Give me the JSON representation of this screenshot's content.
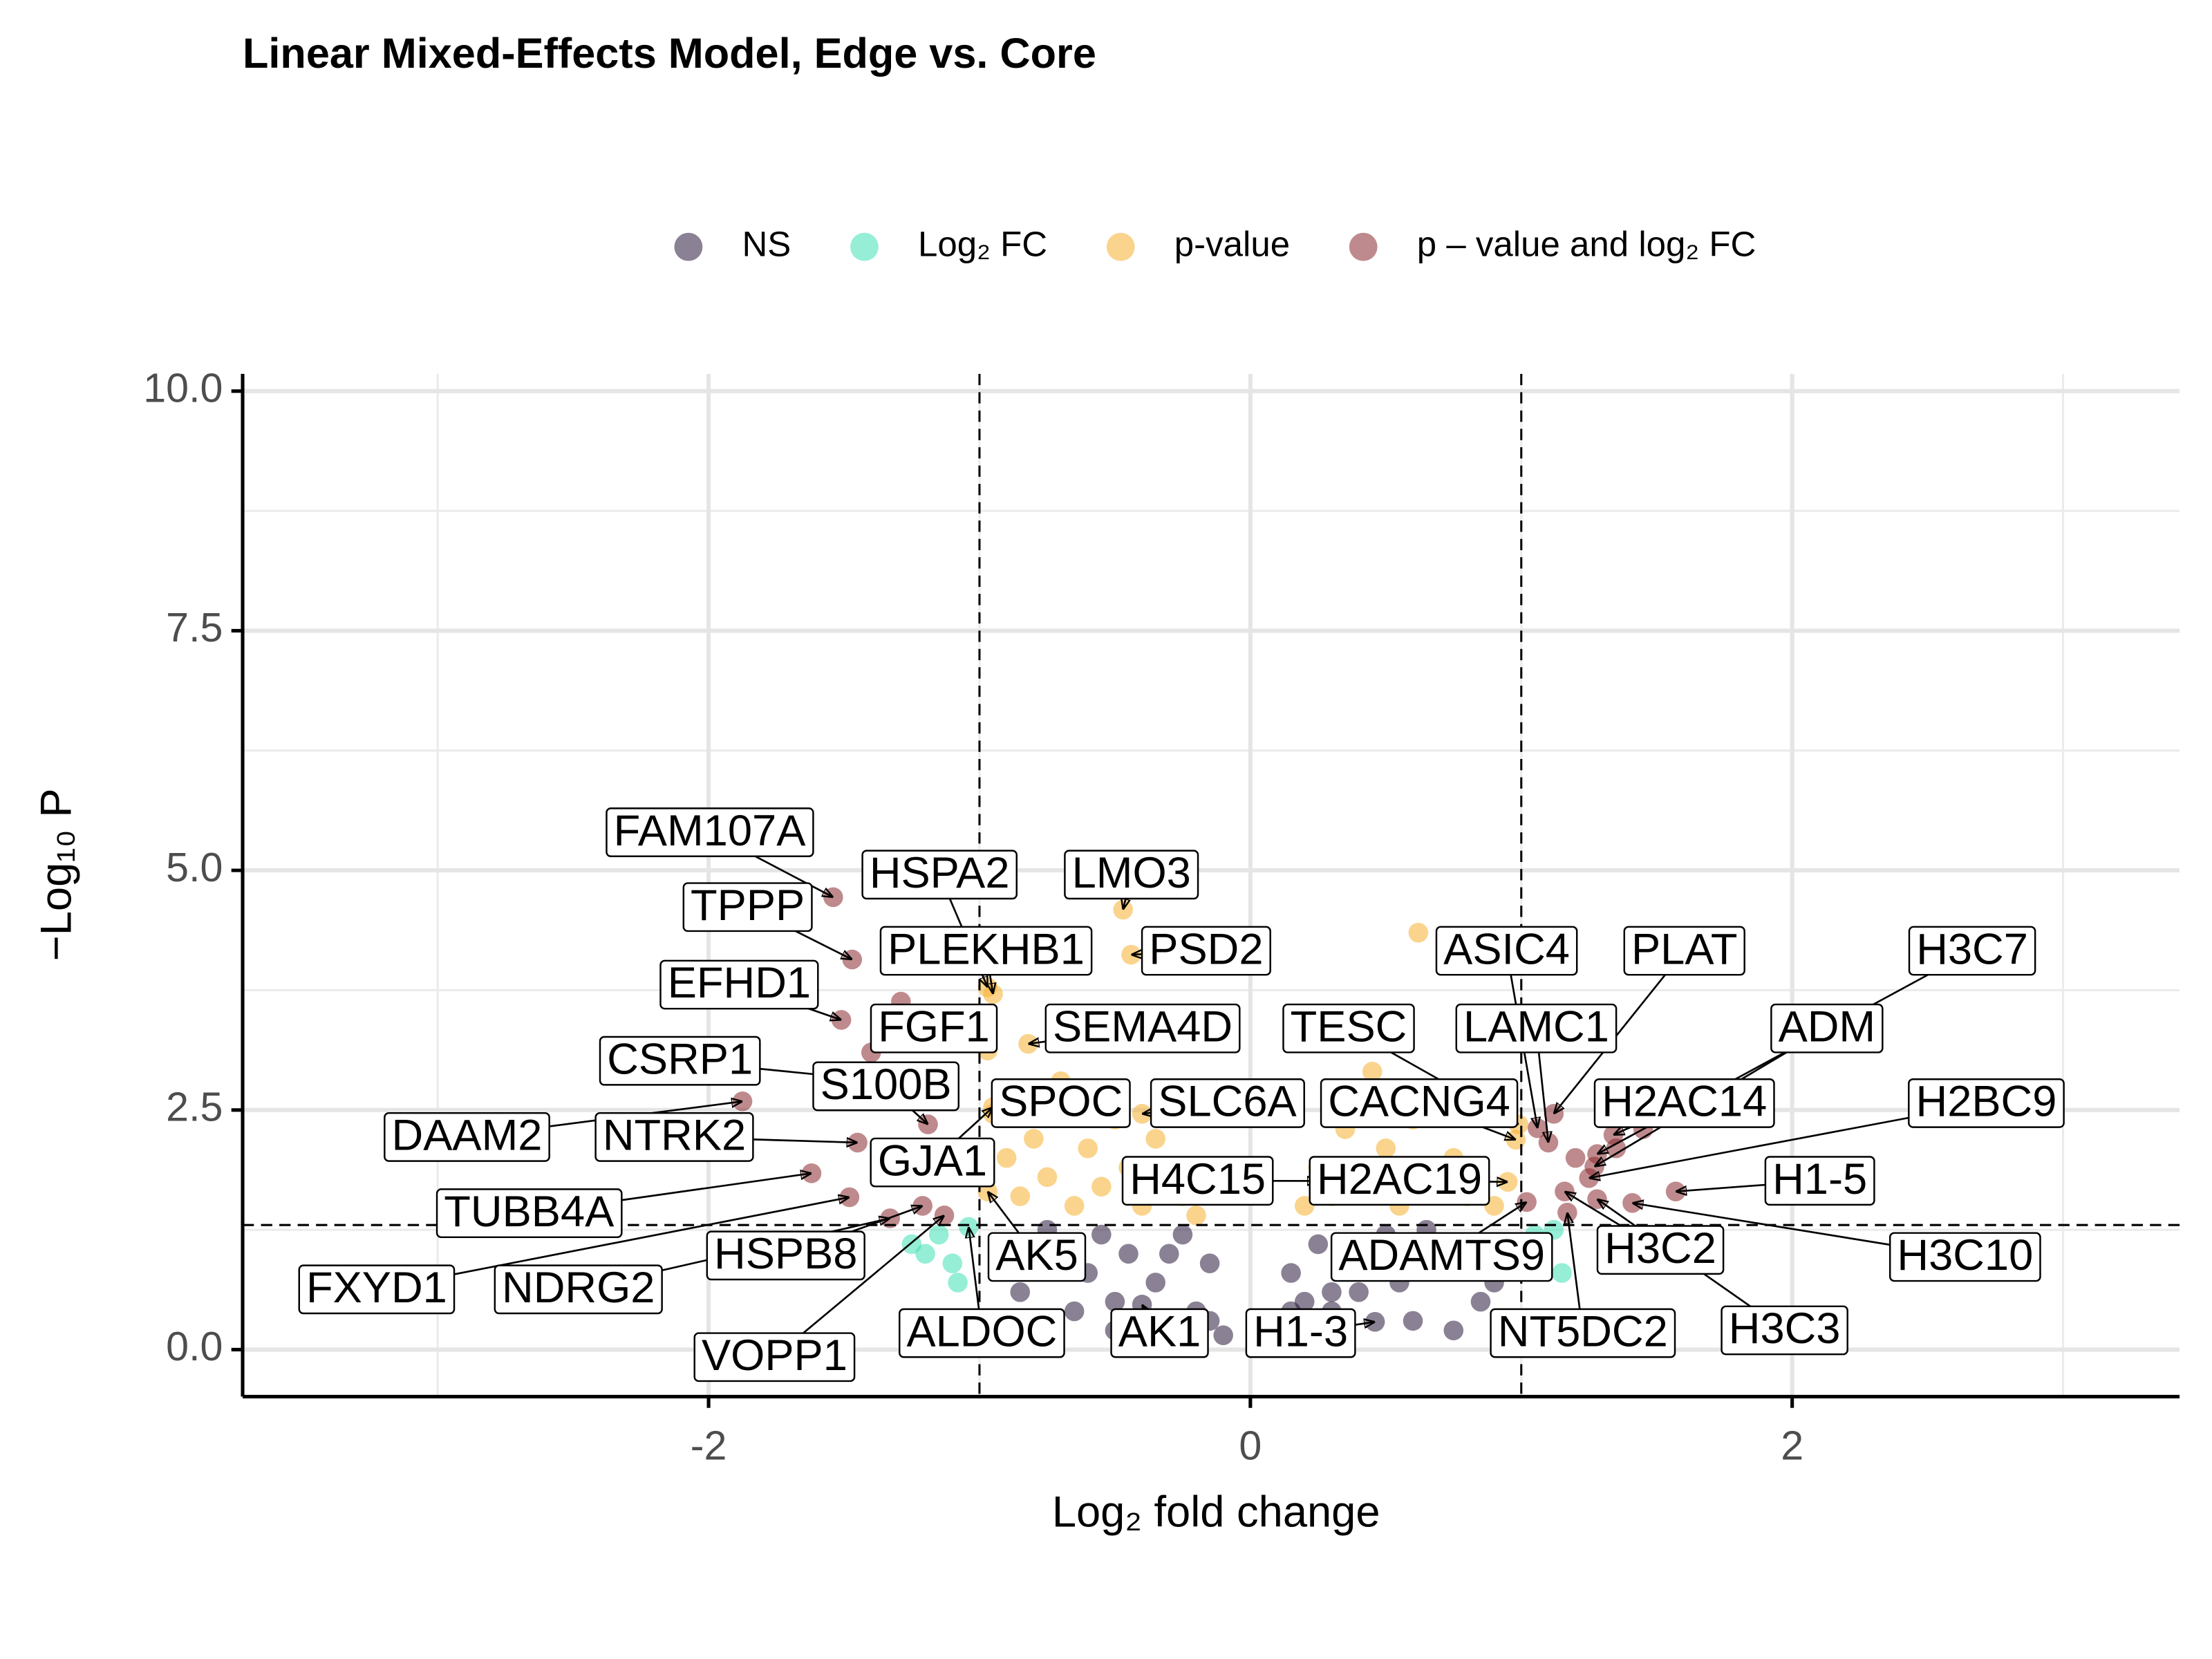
{
  "chart_data": {
    "type": "scatter",
    "title": "Linear Mixed-Effects Model, Edge vs. Core",
    "xlabel": "Log₂ fold change",
    "ylabel": "−Log₁₀ P",
    "xlim": [
      -3.72,
      3.43
    ],
    "ylim": [
      -0.49,
      10.18
    ],
    "xticks": [
      -2,
      0,
      2
    ],
    "yticks": [
      {
        "value": 0,
        "label": "0.0"
      },
      2.5,
      {
        "value": 5,
        "label": "5.0"
      },
      7.5,
      {
        "value": 10,
        "label": "10.0"
      }
    ],
    "x_minor_grid": [
      -3,
      -1,
      1,
      3
    ],
    "y_minor_grid": [
      1.25,
      3.75,
      6.25,
      8.75
    ],
    "fc_cutoffs": [
      -1,
      1
    ],
    "p_cutoff": 1.3,
    "grid": true,
    "legend": "top",
    "series": [
      {
        "name": "NS",
        "color": "#2a1a3c",
        "x": [
          -0.4,
          0.46,
          -0.85,
          -0.8,
          -0.7,
          -0.6,
          -0.55,
          -0.5,
          -0.45,
          -0.35,
          -0.3,
          -0.25,
          -0.2,
          -0.15,
          -0.1,
          0.1,
          0.15,
          0.2,
          0.25,
          0.3,
          0.35,
          0.4,
          0.5,
          0.55,
          0.6,
          0.7,
          0.8,
          0.85,
          0.9,
          -0.65,
          -0.75,
          0.65,
          0.75,
          -0.3,
          0.3,
          -0.5,
          0.5,
          -0.15,
          0.15,
          0.05
        ],
        "y": [
          0.47,
          0.29,
          0.6,
          0.9,
          1.1,
          0.8,
          1.2,
          0.5,
          1.0,
          0.7,
          0.3,
          1.2,
          0.4,
          0.9,
          0.15,
          0.1,
          0.8,
          0.5,
          1.1,
          0.4,
          0.9,
          0.6,
          1.2,
          0.7,
          0.3,
          0.9,
          1.1,
          0.5,
          0.7,
          0.4,
          1.25,
          1.25,
          0.2,
          1.0,
          0.6,
          0.2,
          1.0,
          0.3,
          0.4,
          0.05
        ],
        "labels": [
          "AK1",
          "H1-3",
          null,
          null,
          null,
          null,
          null,
          null,
          null,
          null,
          null,
          null,
          null,
          null,
          null,
          null,
          null,
          null,
          null,
          null,
          null,
          null,
          null,
          null,
          null,
          null,
          null,
          null,
          null,
          null,
          null,
          null,
          null,
          null,
          null,
          null,
          null,
          null,
          null,
          null
        ]
      },
      {
        "name": "Log₂ FC",
        "color": "#3fe0b5",
        "x": [
          -1.04,
          -1.2,
          -1.15,
          -1.08,
          -1.25,
          -1.1,
          1.05,
          1.12,
          1.08,
          1.15
        ],
        "y": [
          1.28,
          1.0,
          1.2,
          0.7,
          1.1,
          0.9,
          1.2,
          1.25,
          1.0,
          0.8
        ],
        "labels": [
          "ALDOC",
          null,
          null,
          null,
          null,
          null,
          null,
          null,
          null,
          null
        ]
      },
      {
        "name": "p-value",
        "color": "#f5b030",
        "x": [
          -0.97,
          -0.47,
          -0.95,
          -0.44,
          -0.97,
          -0.82,
          -0.95,
          -0.4,
          -0.95,
          -0.97,
          0.99,
          0.98,
          0.95,
          0.25,
          -0.9,
          -0.85,
          -0.8,
          -0.75,
          -0.7,
          -0.65,
          -0.6,
          -0.55,
          -0.5,
          -0.45,
          -0.4,
          -0.35,
          -0.3,
          -0.25,
          -0.2,
          0.2,
          0.25,
          0.3,
          0.35,
          0.4,
          0.45,
          0.5,
          0.55,
          0.6,
          0.7,
          0.75,
          0.8,
          0.9,
          0.62,
          -0.65
        ],
        "y": [
          3.78,
          4.59,
          3.71,
          4.12,
          3.12,
          3.19,
          2.46,
          2.46,
          2.53,
          1.65,
          2.35,
          2.19,
          1.75,
          1.76,
          2.0,
          1.6,
          2.2,
          1.8,
          2.8,
          1.5,
          2.1,
          1.7,
          2.4,
          1.9,
          1.5,
          2.2,
          1.8,
          1.6,
          1.4,
          1.5,
          1.9,
          1.6,
          2.3,
          1.8,
          2.9,
          2.1,
          1.5,
          2.4,
          1.7,
          2.0,
          1.6,
          1.5,
          4.35,
          3.3
        ],
        "labels": [
          "HSPA2",
          "LMO3",
          "PLEKHB1",
          "PSD2",
          "FGF1",
          "SEMA4D",
          "SPOC",
          "SLC6A",
          "GJA1",
          "AK5",
          "TESC",
          "CACNG4",
          "H2AC19",
          "H4C15",
          null,
          null,
          null,
          null,
          null,
          null,
          null,
          null,
          null,
          null,
          null,
          null,
          null,
          null,
          null,
          null,
          null,
          null,
          null,
          null,
          null,
          null,
          null,
          null,
          null,
          null,
          null,
          null,
          null,
          null
        ]
      },
      {
        "name": "p – value and log₂ FC",
        "color": "#8b2a30",
        "x": [
          -1.54,
          -1.47,
          -1.51,
          -1.42,
          -1.875,
          -1.45,
          -1.62,
          -1.48,
          -1.33,
          -1.21,
          -1.13,
          -1.19,
          1.12,
          1.1,
          1.06,
          1.28,
          1.27,
          1.34,
          1.25,
          1.57,
          1.41,
          1.16,
          1.28,
          1.17,
          1.02,
          -1.29,
          -1.4,
          -1.1,
          1.45,
          1.2,
          1.35
        ],
        "y": [
          4.72,
          4.07,
          3.44,
          2.82,
          2.59,
          2.16,
          1.84,
          1.59,
          1.37,
          1.5,
          1.4,
          2.35,
          2.46,
          2.16,
          2.31,
          2.04,
          1.91,
          2.24,
          1.79,
          1.65,
          1.53,
          1.65,
          1.57,
          1.43,
          1.54,
          3.63,
          3.1,
          2.0,
          2.3,
          2.0,
          2.1
        ],
        "labels": [
          "FAM107A",
          "TPPP",
          "EFHD1",
          "CSRP1",
          "DAAM2",
          "NTRK2",
          "TUBB4A",
          "FXYD1",
          "NDRG2",
          "HSPB8",
          "VOPP1",
          "S100B",
          "PLAT",
          "LAMC1",
          "ASIC4",
          "H3C7",
          "ADM",
          "H2AC14",
          "H2BC9",
          "H1-5",
          "H3C10",
          "H3C2",
          "H3C3",
          "NT5DC2",
          "ADAMTS9",
          null,
          null,
          null,
          null,
          null,
          null
        ]
      }
    ]
  }
}
